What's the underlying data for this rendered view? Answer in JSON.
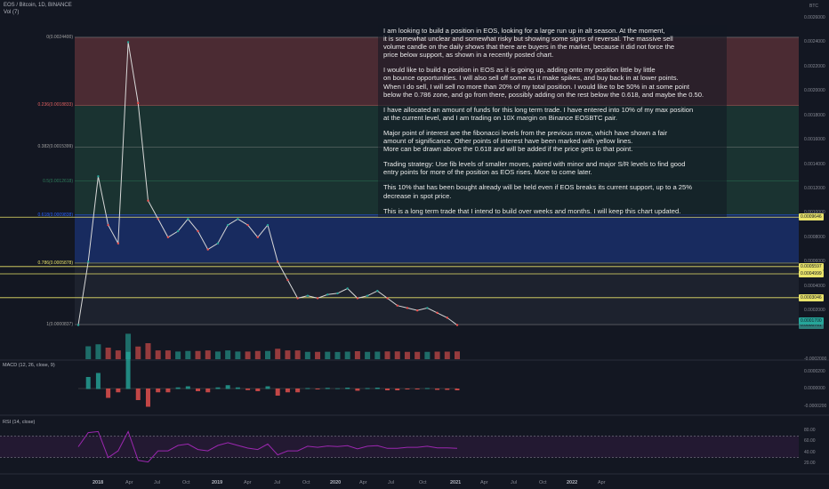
{
  "header": {
    "symbol": "EOS / Bitcoin, 1D, BINANCE",
    "vol_label": "Vol (7)",
    "currency": "BTC"
  },
  "colors": {
    "fib_red": "#e06060",
    "fib_green": "#2e7d5b",
    "fib_blue": "#2962ff",
    "sr_yellow": "#e9e36a",
    "rsi_purple": "#9c27b0"
  },
  "note": {
    "paragraphs": [
      "I am looking to build a position in EOS, looking for a large run up in alt season. At the moment,\nit is somewhat unclear and somewhat risky but showing some signs of reversal. The massive sell\nvolume candle on the daily shows that there are buyers in the market, because it did not force the\nprice below support, as shown in a recently posted chart.",
      "I would like to build a position in EOS as it is going up, adding onto my position little by little\non bounce opportunities. I will also sell off some as it make spikes, and buy back in at lower points.\nWhen I do sell, I will sell no more than 20% of my total position. I would like to be 50% in at some point\nbelow the 0.786 zone, and go from  there, possibly adding on the rest below the 0.618, and maybe the 0.50.",
      "I have allocated an amount of funds for this long term trade. I have entered into 10% of my max position\nat the current level, and I am trading on 10X margin on Binance EOSBTC pair.",
      "Major point of interest are the fibonacci levels from the previous move, which have shown a fair\namount of significance. Other points of interest have been marked with yellow lines.\nMore can be drawn above the 0.618 and will be added if the price gets to that point.",
      "Trading strategy: Use fib levels of smaller moves, paired with minor and major S/R levels to find good\nentry points for more of the position as EOS rises. More to come later.",
      "This 10% that has been bought already will be held even if EOS breaks its current support, up to a 25%\ndecrease in spot price.",
      "This is a long term trade that I intend to build over weeks and months. I will keep this chart updated."
    ]
  },
  "price_axis": [
    "0.0026000",
    "0.0024000",
    "0.0022000",
    "0.0020000",
    "0.0018000",
    "0.0016000",
    "0.0014000",
    "0.0012000",
    "0.0010000",
    "0.0008000",
    "0.0006000",
    "0.0004000",
    "0.0002000",
    "-0.0002000"
  ],
  "price_tags": [
    "0.0009646",
    "0.0005597",
    "0.0004999",
    "0.0003046",
    "0.0000761",
    "0.0001700"
  ],
  "fib_levels": [
    {
      "label": "0(0.0024400)",
      "price": 0.00244
    },
    {
      "label": "0.236(0.0018833)",
      "price": 0.0018833
    },
    {
      "label": "0.382(0.0015399)",
      "price": 0.0015399
    },
    {
      "label": "0.5(0.0012618)",
      "price": 0.0012618
    },
    {
      "label": "0.618(0.0009838)",
      "price": 0.0009838
    },
    {
      "label": "0.786(0.0005878)",
      "price": 0.0005878
    },
    {
      "label": "1(0.0000837)",
      "price": 8.37e-05
    }
  ],
  "macd": {
    "label": "MACD (12, 26, close, 9)",
    "axis": [
      "0.0000200",
      "0.0000000",
      "-0.0000200"
    ]
  },
  "rsi": {
    "label": "RSI (14, close)",
    "axis": [
      "80.00",
      "60.00",
      "40.00",
      "20.00"
    ]
  },
  "time_axis": [
    "2018",
    "Apr",
    "Jul",
    "Oct",
    "2019",
    "Apr",
    "Jul",
    "Oct",
    "2020",
    "Apr",
    "Jul",
    "Oct",
    "2021",
    "Apr",
    "Jul",
    "Oct",
    "2022",
    "Apr"
  ],
  "chart_data": {
    "type": "line",
    "title": "EOS / Bitcoin, 1D, BINANCE",
    "xlabel": "",
    "ylabel": "",
    "x": [
      "2017-10",
      "2017-12",
      "2018-01",
      "2018-02",
      "2018-03",
      "2018-04",
      "2018-05",
      "2018-06",
      "2018-07",
      "2018-08",
      "2018-09",
      "2018-10",
      "2018-11",
      "2018-12",
      "2019-01",
      "2019-02",
      "2019-03",
      "2019-04",
      "2019-05",
      "2019-06",
      "2019-07",
      "2019-08",
      "2019-09",
      "2019-10",
      "2019-11",
      "2019-12",
      "2020-01",
      "2020-02",
      "2020-03",
      "2020-04",
      "2020-05",
      "2020-06",
      "2020-07",
      "2020-08",
      "2020-09",
      "2020-10",
      "2020-11",
      "2020-12",
      "2021-01"
    ],
    "series": [
      {
        "values": [
          8e-05,
          0.0006,
          0.0013,
          0.0009,
          0.00075,
          0.0024,
          0.0019,
          0.0011,
          0.00095,
          0.0008,
          0.00085,
          0.00095,
          0.00085,
          0.0007,
          0.00075,
          0.0009,
          0.00095,
          0.0009,
          0.0008,
          0.0009,
          0.0006,
          0.00045,
          0.0003,
          0.00032,
          0.0003,
          0.00033,
          0.00034,
          0.00038,
          0.0003,
          0.00032,
          0.00036,
          0.0003,
          0.00024,
          0.00022,
          0.0002,
          0.00022,
          0.00018,
          0.00014,
          8e-05
        ]
      }
    ],
    "ylim": [
      -0.00025,
      0.0027
    ]
  }
}
